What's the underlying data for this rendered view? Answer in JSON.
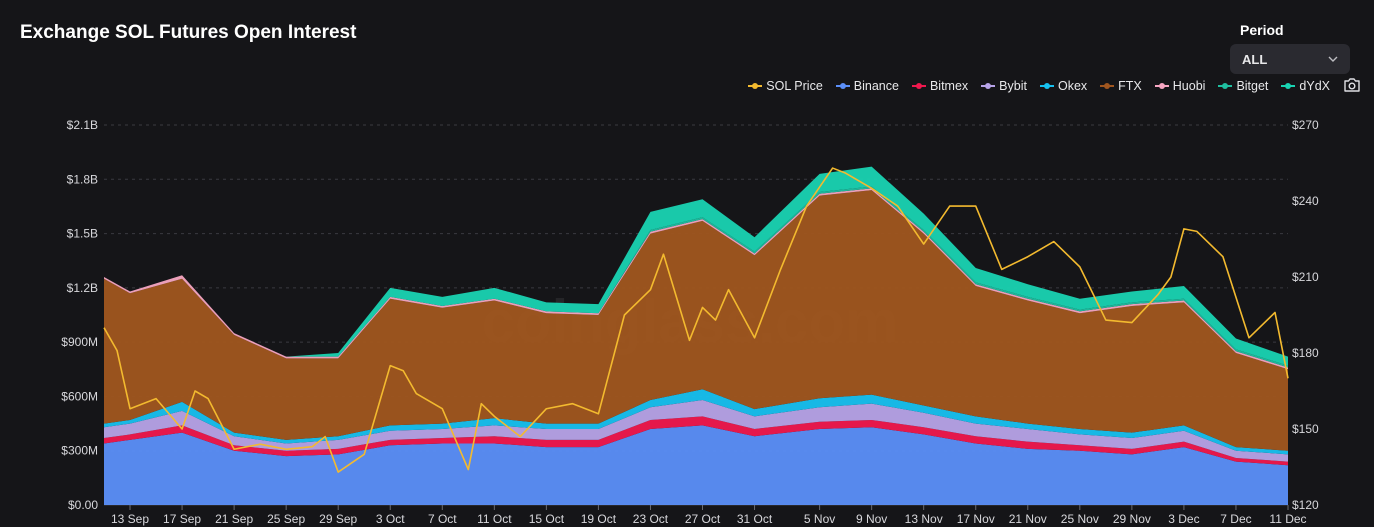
{
  "header": {
    "title": "Exchange SOL Futures Open Interest"
  },
  "period": {
    "label": "Period",
    "selected": "ALL"
  },
  "watermark": "coinglass.com",
  "colors": {
    "background": "#151518",
    "sol_price": "#f3ba2f",
    "binance": "#5b8ff9",
    "bitmex": "#f0184e",
    "bybit": "#b7a3e8",
    "okex": "#17c1f0",
    "ftx": "#a0561f",
    "huobi": "#f7a6c2",
    "bitget": "#1fbfa0",
    "dydx": "#19d3b2"
  },
  "chart_data": {
    "type": "area",
    "title": "Exchange SOL Futures Open Interest",
    "stacked": true,
    "x_labels": [
      "13 Sep",
      "17 Sep",
      "21 Sep",
      "25 Sep",
      "29 Sep",
      "3 Oct",
      "7 Oct",
      "11 Oct",
      "15 Oct",
      "19 Oct",
      "23 Oct",
      "27 Oct",
      "31 Oct",
      "5 Nov",
      "9 Nov",
      "13 Nov",
      "17 Nov",
      "21 Nov",
      "25 Nov",
      "29 Nov",
      "3 Dec",
      "7 Dec",
      "11 Dec"
    ],
    "x_range": [
      "11 Sep",
      "11 Dec"
    ],
    "left_axis": {
      "min": 0,
      "max": 2.1,
      "unit": "B USD",
      "tick_labels": [
        "$0.00",
        "$300M",
        "$600M",
        "$900M",
        "$1.2B",
        "$1.5B",
        "$1.8B",
        "$2.1B"
      ]
    },
    "right_axis": {
      "min": 120,
      "max": 270,
      "unit": "USD",
      "tick_labels": [
        "$120",
        "$150",
        "$180",
        "$210",
        "$240",
        "$270"
      ]
    },
    "legend": [
      {
        "key": "sol_price",
        "name": "SOL Price"
      },
      {
        "key": "binance",
        "name": "Binance"
      },
      {
        "key": "bitmex",
        "name": "Bitmex"
      },
      {
        "key": "bybit",
        "name": "Bybit"
      },
      {
        "key": "okex",
        "name": "Okex"
      },
      {
        "key": "ftx",
        "name": "FTX"
      },
      {
        "key": "huobi",
        "name": "Huobi"
      },
      {
        "key": "bitget",
        "name": "Bitget"
      },
      {
        "key": "dydx",
        "name": "dYdX"
      }
    ],
    "legend_placement": "top-right",
    "grid": "horizontal dashed",
    "series_total_oi_b": {
      "dates": [
        "11 Sep",
        "13 Sep",
        "17 Sep",
        "21 Sep",
        "25 Sep",
        "29 Sep",
        "3 Oct",
        "7 Oct",
        "11 Oct",
        "15 Oct",
        "19 Oct",
        "23 Oct",
        "27 Oct",
        "31 Oct",
        "5 Nov",
        "9 Nov",
        "13 Nov",
        "17 Nov",
        "21 Nov",
        "25 Nov",
        "29 Nov",
        "3 Dec",
        "7 Dec",
        "11 Dec"
      ],
      "binance": [
        0.34,
        0.36,
        0.4,
        0.3,
        0.27,
        0.28,
        0.33,
        0.34,
        0.34,
        0.32,
        0.32,
        0.42,
        0.44,
        0.38,
        0.42,
        0.43,
        0.39,
        0.34,
        0.31,
        0.3,
        0.28,
        0.32,
        0.24,
        0.22
      ],
      "bitmex": [
        0.03,
        0.03,
        0.04,
        0.03,
        0.03,
        0.03,
        0.03,
        0.03,
        0.04,
        0.04,
        0.04,
        0.05,
        0.05,
        0.04,
        0.04,
        0.04,
        0.04,
        0.04,
        0.04,
        0.03,
        0.03,
        0.03,
        0.02,
        0.02
      ],
      "bybit": [
        0.06,
        0.06,
        0.08,
        0.05,
        0.04,
        0.05,
        0.05,
        0.05,
        0.06,
        0.06,
        0.06,
        0.07,
        0.09,
        0.07,
        0.08,
        0.09,
        0.08,
        0.07,
        0.07,
        0.06,
        0.06,
        0.06,
        0.04,
        0.04
      ],
      "okex": [
        0.02,
        0.02,
        0.05,
        0.02,
        0.02,
        0.02,
        0.03,
        0.03,
        0.04,
        0.03,
        0.03,
        0.04,
        0.06,
        0.04,
        0.05,
        0.05,
        0.04,
        0.04,
        0.03,
        0.03,
        0.03,
        0.03,
        0.02,
        0.02
      ],
      "ftx": [
        0.8,
        0.7,
        0.68,
        0.54,
        0.45,
        0.43,
        0.7,
        0.64,
        0.65,
        0.61,
        0.6,
        0.92,
        0.93,
        0.85,
        1.12,
        1.13,
        0.95,
        0.72,
        0.68,
        0.64,
        0.7,
        0.68,
        0.52,
        0.45
      ],
      "huobi": [
        0.01,
        0.01,
        0.02,
        0.01,
        0.01,
        0.01,
        0.01,
        0.01,
        0.01,
        0.01,
        0.01,
        0.01,
        0.01,
        0.01,
        0.01,
        0.01,
        0.01,
        0.01,
        0.01,
        0.01,
        0.01,
        0.01,
        0.01,
        0.01
      ],
      "bitget": [
        0.0,
        0.0,
        0.0,
        0.0,
        0.0,
        0.0,
        0.0,
        0.0,
        0.0,
        0.0,
        0.0,
        0.01,
        0.01,
        0.01,
        0.01,
        0.01,
        0.01,
        0.01,
        0.01,
        0.01,
        0.01,
        0.01,
        0.01,
        0.01
      ],
      "dydx": [
        0.0,
        0.0,
        0.0,
        0.0,
        0.0,
        0.02,
        0.05,
        0.05,
        0.06,
        0.05,
        0.05,
        0.1,
        0.1,
        0.08,
        0.1,
        0.11,
        0.09,
        0.08,
        0.07,
        0.06,
        0.06,
        0.07,
        0.06,
        0.05
      ]
    },
    "sol_price_usd": {
      "dates": [
        "11 Sep",
        "12 Sep",
        "13 Sep",
        "15 Sep",
        "17 Sep",
        "18 Sep",
        "19 Sep",
        "21 Sep",
        "23 Sep",
        "25 Sep",
        "27 Sep",
        "28 Sep",
        "29 Sep",
        "1 Oct",
        "3 Oct",
        "4 Oct",
        "5 Oct",
        "7 Oct",
        "9 Oct",
        "10 Oct",
        "11 Oct",
        "13 Oct",
        "15 Oct",
        "17 Oct",
        "19 Oct",
        "21 Oct",
        "23 Oct",
        "24 Oct",
        "25 Oct",
        "26 Oct",
        "27 Oct",
        "28 Oct",
        "29 Oct",
        "31 Oct",
        "2 Nov",
        "4 Nov",
        "6 Nov",
        "7 Nov",
        "9 Nov",
        "11 Nov",
        "13 Nov",
        "15 Nov",
        "17 Nov",
        "19 Nov",
        "21 Nov",
        "23 Nov",
        "25 Nov",
        "27 Nov",
        "29 Nov",
        "1 Dec",
        "2 Dec",
        "3 Dec",
        "4 Dec",
        "6 Dec",
        "8 Dec",
        "10 Dec",
        "11 Dec"
      ],
      "values": [
        190,
        181,
        158,
        162,
        150,
        165,
        162,
        142,
        144,
        142,
        143,
        147,
        133,
        140,
        175,
        173,
        164,
        158,
        134,
        160,
        155,
        147,
        158,
        160,
        156,
        195,
        205,
        219,
        202,
        185,
        198,
        193,
        205,
        186,
        213,
        238,
        253,
        251,
        245,
        238,
        223,
        238,
        238,
        213,
        218,
        224,
        214,
        193,
        192,
        203,
        210,
        229,
        228,
        218,
        186,
        196,
        170
      ]
    }
  }
}
